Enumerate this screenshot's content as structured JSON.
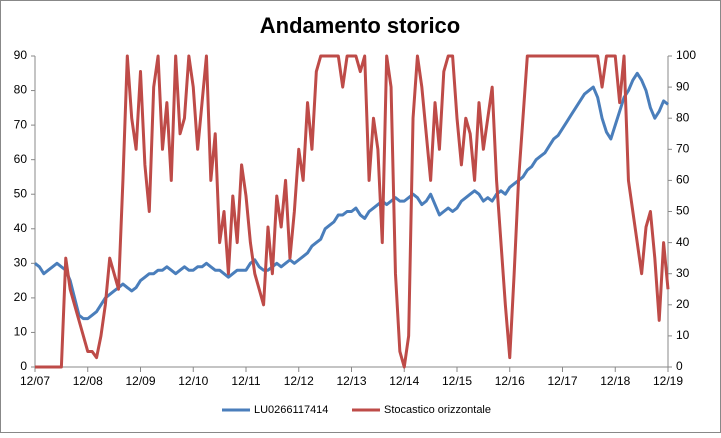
{
  "chart_data": {
    "type": "line",
    "title": "Andamento storico",
    "categories": [
      "12/07",
      null,
      null,
      null,
      null,
      null,
      null,
      null,
      null,
      null,
      null,
      null,
      "12/08",
      null,
      null,
      null,
      null,
      null,
      null,
      null,
      null,
      null,
      null,
      null,
      "12/09",
      null,
      null,
      null,
      null,
      null,
      null,
      null,
      null,
      null,
      null,
      null,
      "12/10",
      null,
      null,
      null,
      null,
      null,
      null,
      null,
      null,
      null,
      null,
      null,
      "12/11",
      null,
      null,
      null,
      null,
      null,
      null,
      null,
      null,
      null,
      null,
      null,
      "12/12",
      null,
      null,
      null,
      null,
      null,
      null,
      null,
      null,
      null,
      null,
      null,
      "12/13",
      null,
      null,
      null,
      null,
      null,
      null,
      null,
      null,
      null,
      null,
      null,
      "12/14",
      null,
      null,
      null,
      null,
      null,
      null,
      null,
      null,
      null,
      null,
      null,
      "12/15",
      null,
      null,
      null,
      null,
      null,
      null,
      null,
      null,
      null,
      null,
      null,
      "12/16",
      null,
      null,
      null,
      null,
      null,
      null,
      null,
      null,
      null,
      null,
      null,
      "12/17",
      null,
      null,
      null,
      null,
      null,
      null,
      null,
      null,
      null,
      null,
      null,
      "12/18",
      null,
      null,
      null,
      null,
      null,
      null,
      null,
      null,
      null,
      null,
      null,
      "12/19"
    ],
    "series": [
      {
        "name": "LU0266117414",
        "color": "#4a7ebb",
        "values": [
          30,
          29,
          27,
          28,
          29,
          30,
          29,
          28,
          25,
          20,
          15,
          14,
          14,
          15,
          16,
          18,
          20,
          21,
          22,
          23,
          24,
          23,
          22,
          23,
          25,
          26,
          27,
          27,
          28,
          28,
          29,
          28,
          27,
          28,
          29,
          28,
          28,
          29,
          29,
          30,
          29,
          28,
          28,
          27,
          26,
          27,
          28,
          28,
          28,
          30,
          31,
          29,
          28,
          28,
          29,
          30,
          29,
          30,
          31,
          30,
          31,
          32,
          33,
          35,
          36,
          37,
          40,
          41,
          42,
          44,
          44,
          45,
          45,
          46,
          44,
          43,
          45,
          46,
          47,
          48,
          47,
          48,
          49,
          48,
          48,
          49,
          50,
          49,
          47,
          48,
          50,
          47,
          44,
          45,
          46,
          45,
          46,
          48,
          49,
          50,
          51,
          50,
          48,
          49,
          48,
          50,
          51,
          50,
          52,
          53,
          54,
          55,
          57,
          58,
          60,
          61,
          62,
          64,
          66,
          67,
          69,
          71,
          73,
          75,
          77,
          79,
          80,
          81,
          78,
          72,
          68,
          66,
          70,
          74,
          78,
          80,
          83,
          85,
          83,
          80,
          75,
          72,
          74,
          77,
          76
        ]
      },
      {
        "name": "Stocastico orizzontale",
        "color": "#be4b48",
        "axis": "y2",
        "values": [
          0,
          0,
          0,
          0,
          0,
          0,
          0,
          35,
          25,
          20,
          15,
          10,
          5,
          5,
          3,
          10,
          20,
          35,
          30,
          25,
          60,
          100,
          80,
          70,
          95,
          65,
          50,
          90,
          100,
          70,
          85,
          60,
          100,
          75,
          80,
          100,
          90,
          70,
          85,
          100,
          60,
          75,
          40,
          50,
          30,
          55,
          40,
          65,
          55,
          40,
          30,
          25,
          20,
          45,
          30,
          55,
          45,
          60,
          35,
          50,
          70,
          60,
          85,
          70,
          95,
          100,
          100,
          100,
          100,
          100,
          90,
          100,
          100,
          100,
          95,
          100,
          60,
          80,
          70,
          40,
          100,
          90,
          30,
          5,
          0,
          10,
          80,
          100,
          90,
          75,
          60,
          85,
          70,
          95,
          100,
          100,
          80,
          65,
          80,
          75,
          60,
          85,
          70,
          80,
          90,
          60,
          40,
          20,
          3,
          30,
          60,
          80,
          100,
          100,
          100,
          100,
          100,
          100,
          100,
          100,
          100,
          100,
          100,
          100,
          100,
          100,
          100,
          100,
          100,
          90,
          100,
          100,
          100,
          85,
          100,
          60,
          50,
          40,
          30,
          45,
          50,
          35,
          15,
          40,
          25
        ]
      }
    ],
    "ylim": [
      0,
      90
    ],
    "yticks": [
      0,
      10,
      20,
      30,
      40,
      50,
      60,
      70,
      80,
      90
    ],
    "y2lim": [
      0,
      100
    ],
    "y2ticks": [
      0,
      10,
      20,
      30,
      40,
      50,
      60,
      70,
      80,
      90,
      100
    ],
    "legend": "bottom"
  }
}
